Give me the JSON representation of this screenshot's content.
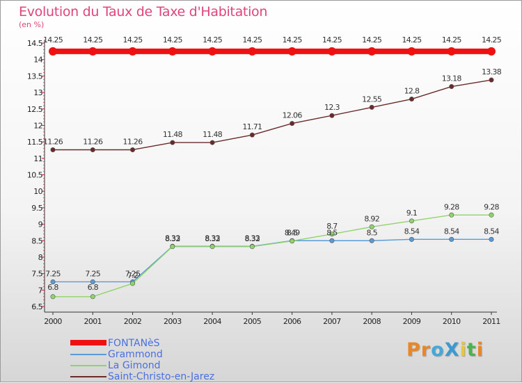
{
  "title": "Evolution du Taux de Taxe d'Habitation",
  "unit_label": "(en %)",
  "brand": {
    "text": "ProXiti",
    "colors": [
      "#e8862a",
      "#e8862a",
      "#45a8d8",
      "#3d9ad1",
      "#e8c53a",
      "#4cb34c",
      "#e8862a"
    ]
  },
  "chart_data": {
    "type": "line",
    "title": "Evolution du Taux de Taxe d'Habitation",
    "ylabel": "(en %)",
    "xlabel": "",
    "x": [
      "2000",
      "2001",
      "2002",
      "2003",
      "2004",
      "2005",
      "2006",
      "2007",
      "2008",
      "2009",
      "2010",
      "2011"
    ],
    "ylim": [
      6.5,
      14.5
    ],
    "yticks": [
      "6.5",
      "7",
      "7.5",
      "8",
      "8.5",
      "9",
      "9.5",
      "10",
      "10.5",
      "11",
      "11.5",
      "12",
      "12.5",
      "13",
      "13.5",
      "14",
      "14.5"
    ],
    "grid": false,
    "legend_position": "bottom-left",
    "series": [
      {
        "name": "FONTANèS",
        "color": "#ee1111",
        "values": [
          14.25,
          14.25,
          14.25,
          14.25,
          14.25,
          14.25,
          14.25,
          14.25,
          14.25,
          14.25,
          14.25,
          14.25
        ],
        "labels": [
          "14.25",
          "14.25",
          "14.25",
          "14.25",
          "14.25",
          "14.25",
          "14.25",
          "14.25",
          "14.25",
          "14.25",
          "14.25",
          "14.25"
        ]
      },
      {
        "name": "Grammond",
        "color": "#5b9bd5",
        "values": [
          7.25,
          7.25,
          7.25,
          8.33,
          8.33,
          8.33,
          8.5,
          8.5,
          8.5,
          8.54,
          8.54,
          8.54
        ],
        "labels": [
          "7.25",
          "7.25",
          "7.25",
          "8.33",
          "8.33",
          "8.33",
          "8.5",
          "8.5",
          "8.5",
          "8.54",
          "8.54",
          "8.54"
        ]
      },
      {
        "name": "La Gimond",
        "color": "#8fd46a",
        "values": [
          6.8,
          6.8,
          7.2,
          8.32,
          8.32,
          8.32,
          8.49,
          8.7,
          8.92,
          9.1,
          9.28,
          9.28
        ],
        "labels": [
          "6.8",
          "6.8",
          "7.2",
          "8.32",
          "8.32",
          "8.32",
          "8.49",
          "8.7",
          "8.92",
          "9.1",
          "9.28",
          "9.28"
        ]
      },
      {
        "name": "Saint-Christo-en-Jarez",
        "color": "#6b2a2a",
        "values": [
          11.26,
          11.26,
          11.26,
          11.48,
          11.48,
          11.71,
          12.06,
          12.3,
          12.55,
          12.8,
          13.18,
          13.38
        ],
        "labels": [
          "11.26",
          "11.26",
          "11.26",
          "11.48",
          "11.48",
          "11.71",
          "12.06",
          "12.3",
          "12.55",
          "12.8",
          "13.18",
          "13.38"
        ]
      }
    ]
  }
}
